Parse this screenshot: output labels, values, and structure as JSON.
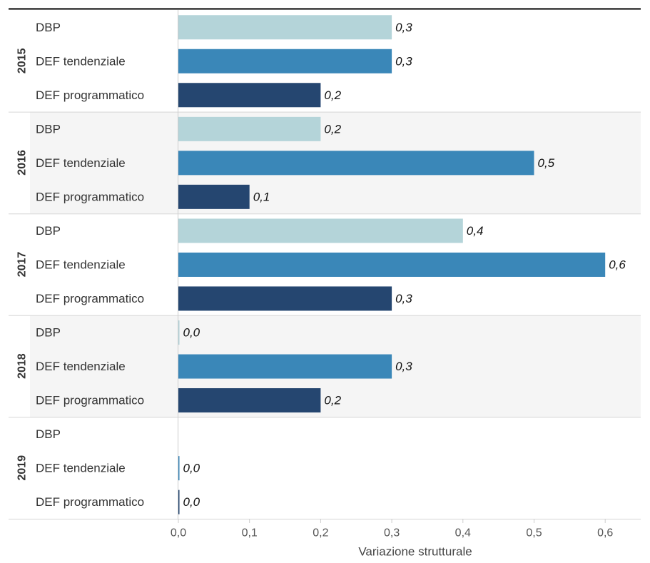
{
  "chart_data": {
    "type": "bar",
    "orientation": "horizontal",
    "xlabel": "Variazione strutturale",
    "xlim": [
      0,
      0.66
    ],
    "xticks": [
      0,
      0.1,
      0.2,
      0.3,
      0.4,
      0.5,
      0.6
    ],
    "xtick_labels": [
      "0,0",
      "0,1",
      "0,2",
      "0,3",
      "0,4",
      "0,5",
      "0,6"
    ],
    "categories": [
      "DBP",
      "DEF tendenziale",
      "DEF programmatico"
    ],
    "category_colors": [
      "#b4d4d9",
      "#3a87b8",
      "#254670"
    ],
    "groups": [
      {
        "year": "2015",
        "values": [
          0.3,
          0.3,
          0.2
        ],
        "labels": [
          "0,3",
          "0,3",
          "0,2"
        ]
      },
      {
        "year": "2016",
        "values": [
          0.2,
          0.5,
          0.1
        ],
        "labels": [
          "0,2",
          "0,5",
          "0,1"
        ]
      },
      {
        "year": "2017",
        "values": [
          0.4,
          0.6,
          0.3
        ],
        "labels": [
          "0,4",
          "0,6",
          "0,3"
        ]
      },
      {
        "year": "2018",
        "values": [
          0.0,
          0.3,
          0.2
        ],
        "labels": [
          "0,0",
          "0,3",
          "0,2"
        ]
      },
      {
        "year": "2019",
        "values": [
          null,
          0.0,
          0.0
        ],
        "labels": [
          null,
          "0,0",
          "0,0"
        ]
      }
    ],
    "shaded_groups": [
      "2016",
      "2018"
    ],
    "grid": false,
    "legend": "none"
  }
}
